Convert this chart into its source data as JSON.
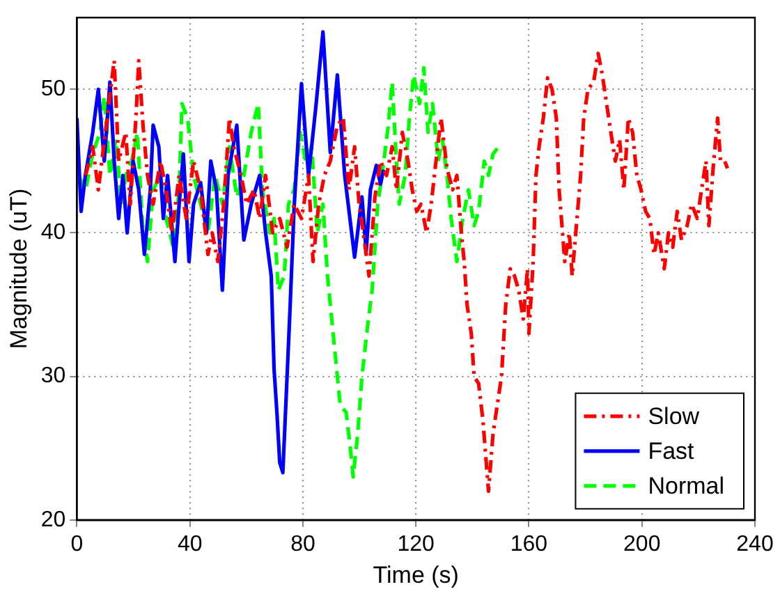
{
  "chart_data": {
    "type": "line",
    "xlabel": "Time (s)",
    "ylabel": "Magnitude (uT)",
    "xlim": [
      0,
      240
    ],
    "xticks": [
      0,
      40,
      80,
      120,
      160,
      200,
      240
    ],
    "ylim": [
      20,
      55
    ],
    "yticks": [
      20,
      30,
      40,
      50
    ],
    "grid": true,
    "legend": "bottom right",
    "marker": "none",
    "series": [
      {
        "name": "Slow",
        "color": "#ff0000",
        "line_style": "dashdot",
        "x": [
          3.1,
          5.6,
          7.6,
          10.7,
          13.2,
          14.8,
          17.3,
          18.9,
          20.9,
          21.9,
          23.4,
          25,
          27,
          29.6,
          31.6,
          33.6,
          36.2,
          38.7,
          41.3,
          43.8,
          46.4,
          47.9,
          49.9,
          52,
          54,
          55.5,
          58.1,
          60.1,
          62.7,
          64.7,
          66.8,
          69.3,
          71.8,
          74.4,
          76.9,
          79.5,
          82,
          83.6,
          85.6,
          87.6,
          89.7,
          92.2,
          94.3,
          96.3,
          98.3,
          99.9,
          101.4,
          103.4,
          105.5,
          107.5,
          109.6,
          111.6,
          113.1,
          115.2,
          117.2,
          118.7,
          120.3,
          121.8,
          123.8,
          125.4,
          127.4,
          128.9,
          131,
          133,
          134.5,
          136.1,
          137.1,
          138.1,
          139.6,
          140.6,
          142.2,
          143.7,
          145.7,
          147.3,
          148.8,
          150.3,
          151.8,
          153.4,
          154.9,
          156.4,
          158,
          159.5,
          160,
          161.5,
          162.5,
          163.6,
          165.1,
          166.6,
          168.2,
          169.7,
          170.7,
          172.7,
          174.3,
          175.3,
          176.8,
          178.3,
          179.4,
          180.9,
          182.9,
          184.5,
          186,
          187.5,
          189,
          190.6,
          192.1,
          193.6,
          195.2,
          196.7,
          198.2,
          199.7,
          201.3,
          202.8,
          204.3,
          205.8,
          207.9,
          209.4,
          210.9,
          212.5,
          214,
          216,
          217.6,
          219.6,
          221.1,
          222.7,
          223.7,
          225.2,
          226.8,
          227.8,
          229.3,
          230.3
        ],
        "values": [
          44,
          46,
          43,
          48,
          52,
          45,
          47,
          42,
          48,
          52,
          47.5,
          44,
          42,
          45,
          43,
          40,
          44,
          41,
          45,
          43,
          38.5,
          40,
          38,
          42,
          48,
          46,
          44,
          42,
          43,
          41,
          44,
          40,
          41,
          39,
          42,
          41,
          44,
          38,
          42,
          44,
          45,
          47.5,
          48,
          43,
          46,
          42,
          40,
          37,
          42.5,
          45,
          44,
          46,
          43,
          47,
          45,
          43,
          41.5,
          42,
          40,
          42,
          45.5,
          48,
          44.5,
          43,
          44,
          40,
          38,
          35,
          33,
          30,
          29.5,
          27,
          22,
          26,
          28,
          30,
          35,
          37.5,
          37,
          36,
          34,
          37.5,
          33,
          38,
          44,
          46,
          48,
          50.8,
          50,
          48,
          43,
          38,
          40,
          37,
          40.5,
          44,
          48,
          50,
          50.5,
          52.5,
          51,
          49,
          47,
          45,
          46.5,
          43,
          48,
          47,
          44,
          43,
          41.5,
          41,
          38.5,
          40,
          37.5,
          40,
          39,
          41.5,
          39.5,
          40.5,
          42,
          41,
          43,
          45,
          40.5,
          44.5,
          48,
          45,
          45,
          44.5
        ]
      },
      {
        "name": "Fast",
        "color": "#0000ff",
        "line_style": "solid",
        "x": [
          0,
          1.5,
          3,
          5.6,
          7.6,
          9.7,
          11.7,
          13.2,
          14.8,
          16.3,
          17.8,
          19.9,
          21.9,
          23.9,
          26,
          27,
          29,
          30.6,
          32.1,
          34.7,
          36.2,
          37.7,
          39.7,
          41.3,
          43.8,
          45.9,
          47.4,
          49.4,
          51.5,
          53.5,
          56.6,
          59.1,
          61.7,
          64.7,
          66.8,
          68.8,
          69.8,
          70.8,
          71.8,
          72.9,
          74.4,
          75.4,
          76.9,
          79.5,
          82,
          84.6,
          87.1,
          89.7,
          92.2,
          94.8,
          98.3,
          100.9,
          102.4,
          103.9,
          106,
          107.5,
          108.5
        ],
        "values": [
          48,
          41.5,
          44,
          47,
          50,
          45,
          50.5,
          45,
          41,
          44,
          40,
          45,
          43,
          38.5,
          43,
          47.5,
          46,
          41,
          44,
          38,
          42,
          45.5,
          38,
          42,
          43.5,
          40,
          45,
          43,
          36,
          44,
          47.5,
          39.5,
          42,
          44,
          40,
          37,
          30.5,
          27.5,
          24,
          23.3,
          30,
          34.5,
          41.8,
          50.4,
          44,
          48.8,
          54,
          45.6,
          51,
          44,
          38.3,
          42.5,
          38.7,
          43,
          44.7,
          43.4,
          44.4
        ]
      },
      {
        "name": "Normal",
        "color": "#00ff00",
        "line_style": "dashed",
        "x": [
          0.5,
          3.1,
          5.6,
          8.2,
          9.7,
          11.7,
          13.8,
          15.8,
          17.3,
          19.4,
          21.4,
          23.4,
          25,
          27,
          29.6,
          31.6,
          34.1,
          36.2,
          37.2,
          39.2,
          41.3,
          43.8,
          46.4,
          48.9,
          51.5,
          54,
          56.6,
          59.1,
          61.7,
          64.2,
          65.7,
          68.3,
          69.8,
          71.3,
          73.4,
          74.9,
          76.9,
          79,
          81,
          83.1,
          85.1,
          87.1,
          88.7,
          90.7,
          93.2,
          95.3,
          96.8,
          97.8,
          99.4,
          100.9,
          102.9,
          104.5,
          106.5,
          108,
          110.1,
          111.6,
          113.1,
          114.1,
          116.2,
          117.7,
          119.2,
          121.3,
          122.8,
          124.3,
          125.9,
          127.9,
          129.4,
          131,
          132.5,
          134.5,
          136.6,
          138.6,
          140.6,
          142.2,
          144.2,
          145.7,
          147.3,
          149.3
        ],
        "values": [
          44,
          43,
          45.5,
          47,
          49.5,
          44,
          46.5,
          42,
          44,
          45,
          47,
          40,
          38,
          43,
          44,
          41,
          39,
          43,
          49,
          48,
          44,
          42,
          40,
          44,
          42,
          46,
          42.5,
          44,
          47,
          49,
          43,
          40,
          41,
          36,
          37,
          42,
          43,
          47,
          45,
          46,
          40,
          42,
          37,
          33,
          28,
          27.5,
          25,
          23,
          26,
          30,
          33.5,
          36,
          42,
          44,
          47.3,
          50.5,
          45,
          42,
          44,
          48,
          51,
          49,
          51.5,
          47,
          49,
          45,
          46.5,
          44,
          41,
          38,
          41,
          43,
          40.5,
          41.5,
          45,
          44,
          45.5,
          46
        ]
      }
    ]
  }
}
